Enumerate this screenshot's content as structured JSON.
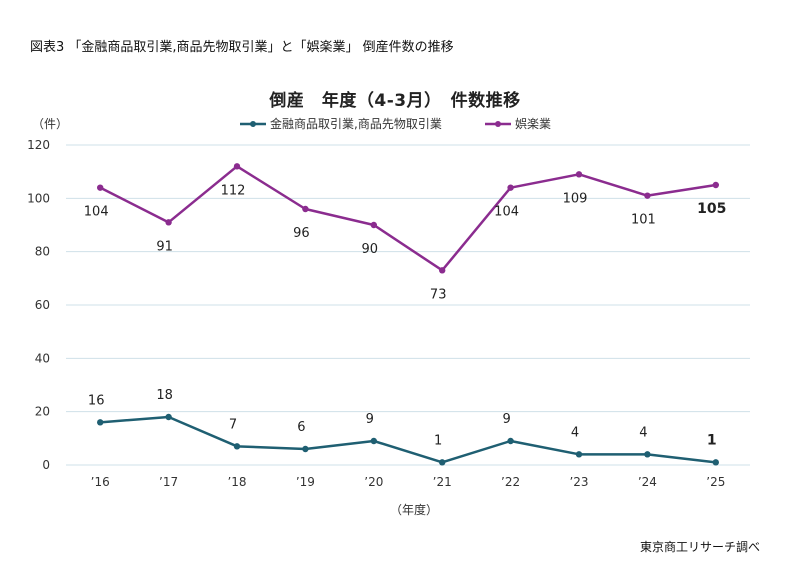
{
  "figure_title": "図表3 「金融商品取引業,商品先物取引業」と「娯楽業」 倒産件数の推移",
  "source": "東京商工リサーチ調べ",
  "colors": {
    "series1": "#1f5f72",
    "series2": "#8b2c8f",
    "grid": "#cfe0e8",
    "text": "#333333"
  },
  "chart_data": {
    "type": "line",
    "title": "倒産　年度（4-3月）　件数推移",
    "xlabel": "（年度）",
    "ylabel": "（件）",
    "ylim": [
      0,
      120
    ],
    "yticks": [
      0,
      20,
      40,
      60,
      80,
      100,
      120
    ],
    "grid": true,
    "legend_position": "top",
    "categories": [
      "’16",
      "’17",
      "’18",
      "’19",
      "’20",
      "’21",
      "’22",
      "’23",
      "’24",
      "’25"
    ],
    "series": [
      {
        "name": "金融商品取引業,商品先物取引業",
        "color": "#1f5f72",
        "values": [
          16,
          18,
          7,
          6,
          9,
          1,
          9,
          4,
          4,
          1
        ],
        "label_pos": "above"
      },
      {
        "name": "娯楽業",
        "color": "#8b2c8f",
        "values": [
          104,
          91,
          112,
          96,
          90,
          73,
          104,
          109,
          101,
          105
        ],
        "label_pos": "below"
      }
    ]
  }
}
